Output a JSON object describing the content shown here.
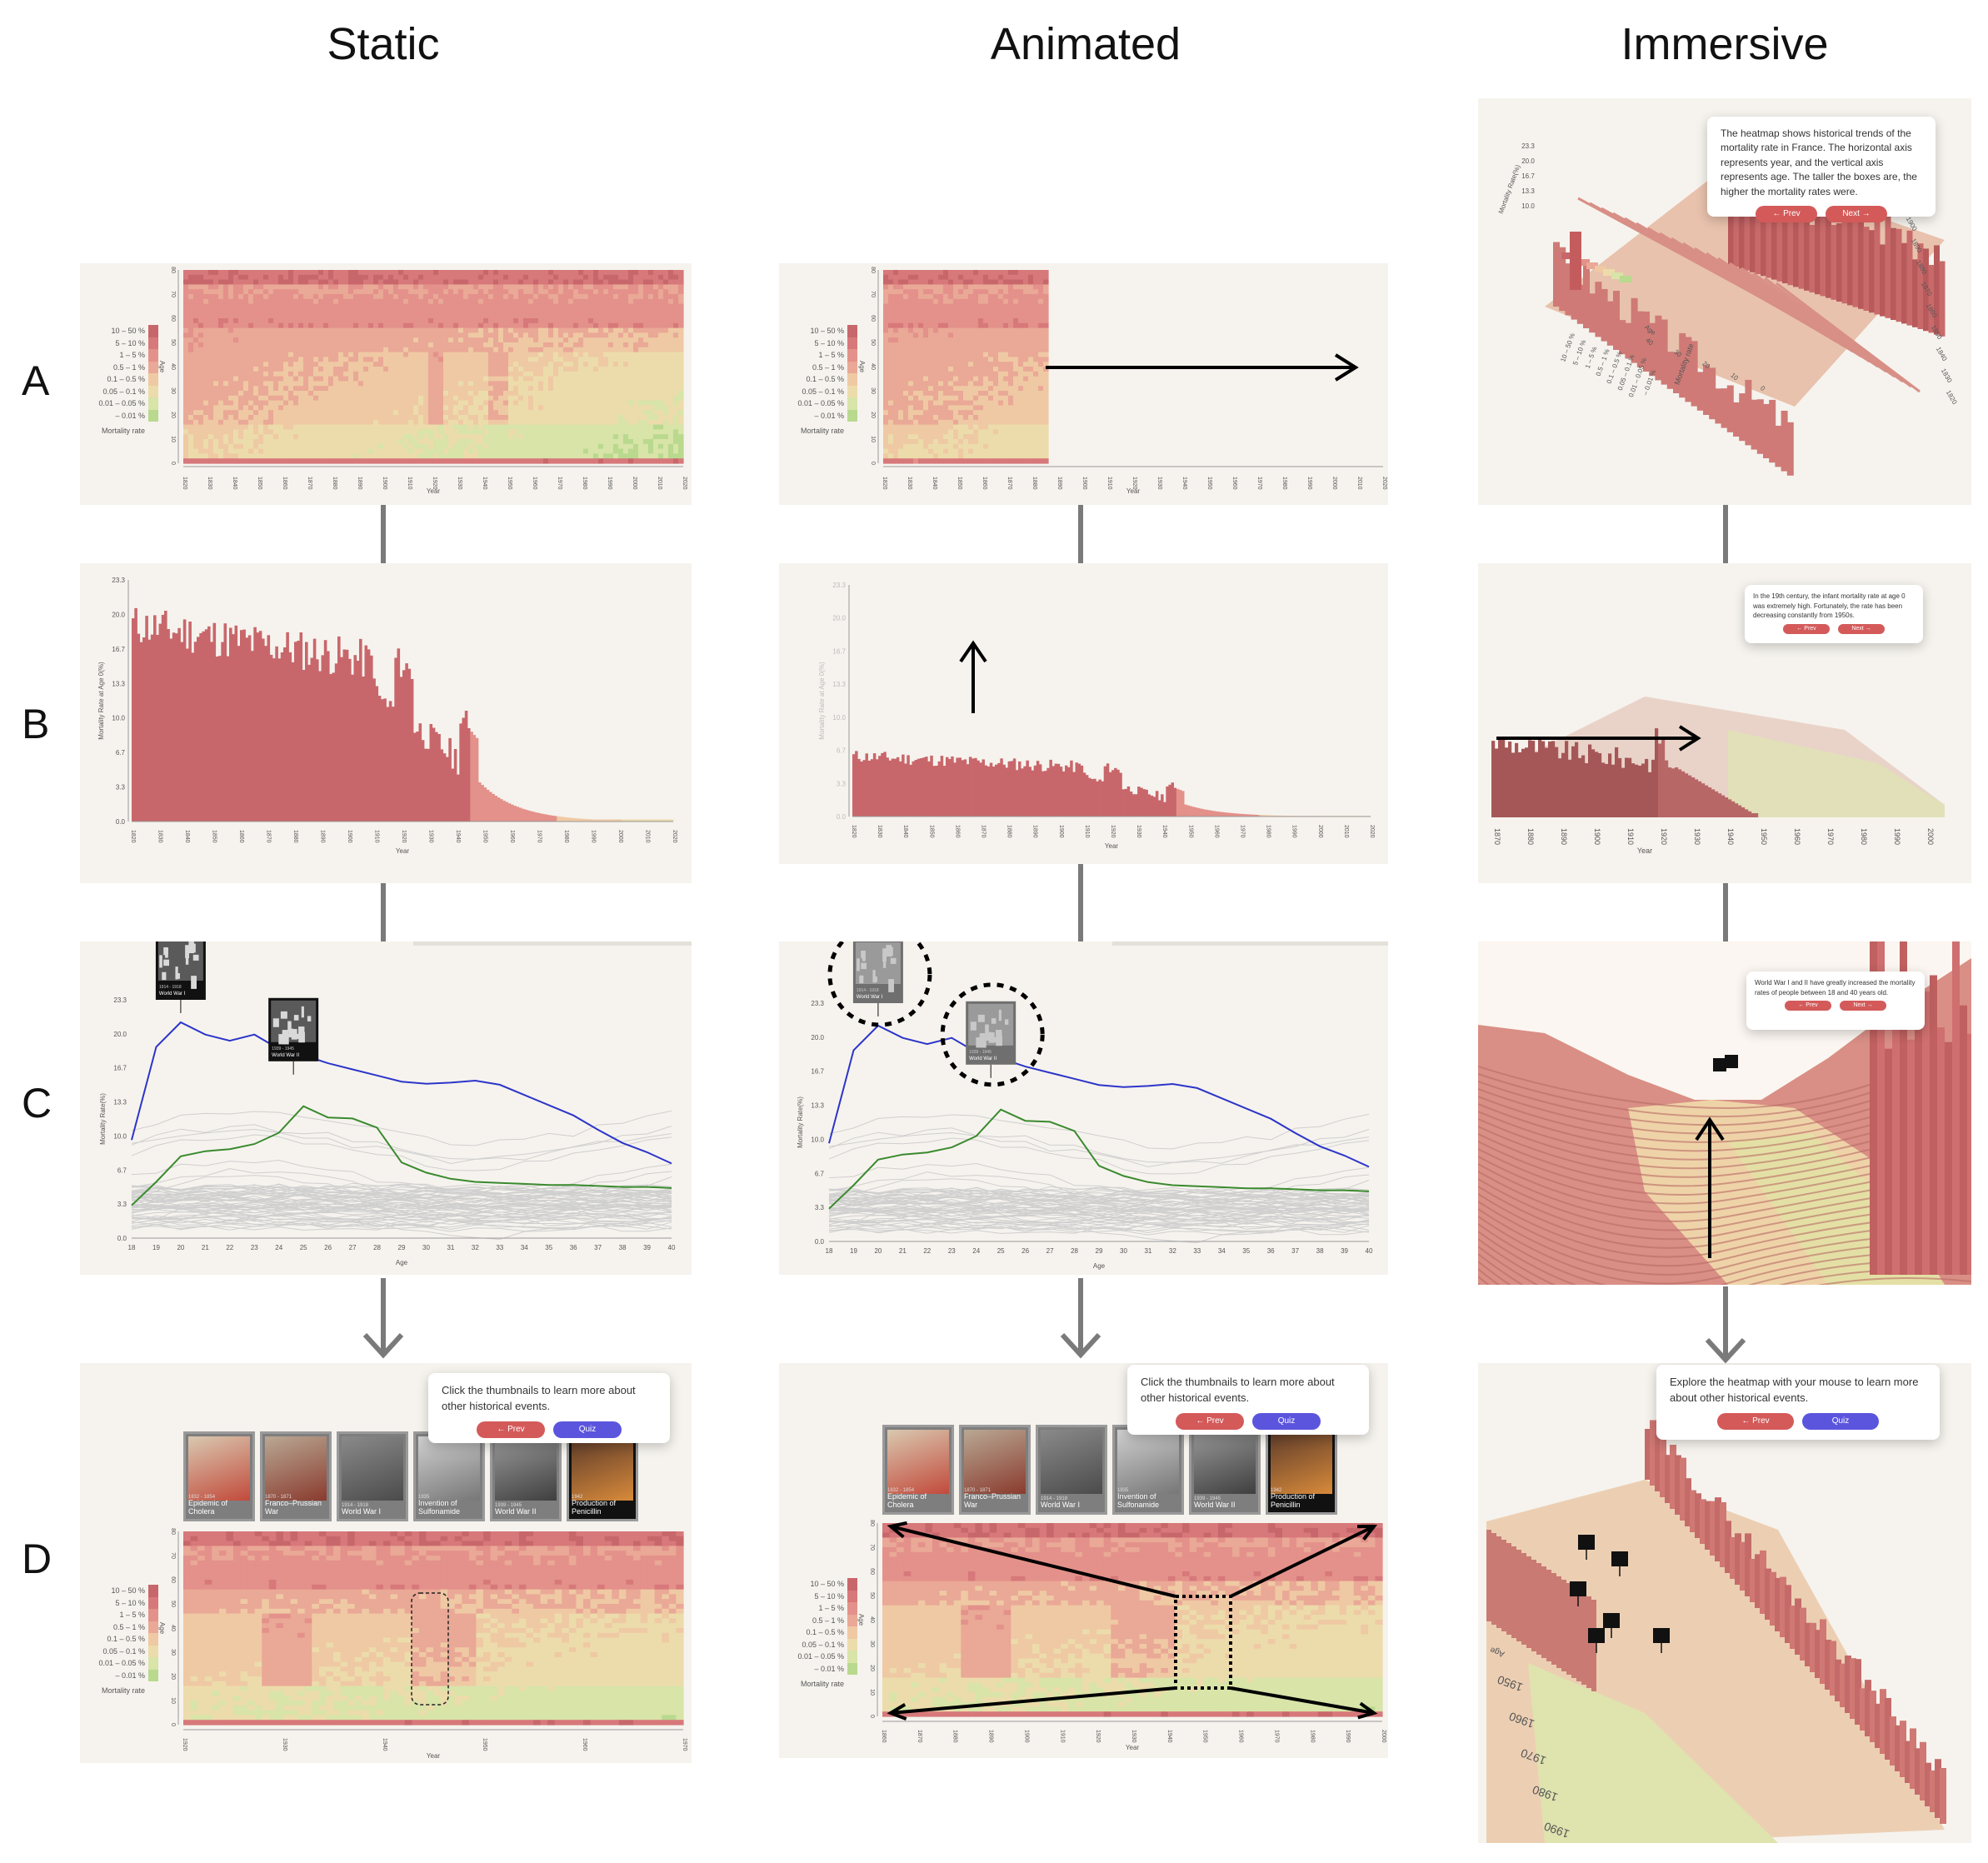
{
  "columns": [
    "Static",
    "Animated",
    "Immersive"
  ],
  "rows": [
    "A",
    "B",
    "C",
    "D"
  ],
  "legend": {
    "items": [
      "10 – 50 %",
      "5 – 10 %",
      "1 – 5 %",
      "0.5 – 1 %",
      "0.1 – 0.5 %",
      "0.05 – 0.1 %",
      "0.01 – 0.05 %",
      "– 0.01 %"
    ],
    "title": "Mortality rate",
    "colors": [
      "#c8676b",
      "#d7787a",
      "#e3918a",
      "#eaa896",
      "#efc9a4",
      "#ecdcab",
      "#d8e4a8",
      "#b9d98e"
    ]
  },
  "axes": {
    "year_label": "Year",
    "age_label": "Age",
    "rate_age0_label": "Mortality Rate at Age 0(%)",
    "rate_label": "Mortality Rate(%)",
    "immersive_rate_label": "Mortality Rate(%)",
    "heat_years_a": [
      "1820",
      "1830",
      "1840",
      "1850",
      "1860",
      "1870",
      "1880",
      "1890",
      "1900",
      "1910",
      "1920",
      "1930",
      "1940",
      "1950",
      "1960",
      "1970",
      "1980",
      "1990",
      "2000",
      "2010",
      "2020"
    ],
    "heat_years_d": [
      "1920",
      "1930",
      "1940",
      "1950",
      "1960",
      "1970"
    ],
    "heat_years_d_anim": [
      "1860",
      "1870",
      "1880",
      "1890",
      "1900",
      "1910",
      "1920",
      "1930",
      "1940",
      "1950",
      "1960",
      "1970",
      "1980",
      "1990",
      "2000"
    ],
    "ages": [
      "0",
      "10",
      "20",
      "30",
      "40",
      "50",
      "60",
      "70",
      "80"
    ],
    "rate_ticks": [
      "0.0",
      "3.3",
      "6.7",
      "10.0",
      "13.3",
      "16.7",
      "20.0",
      "23.3"
    ],
    "age_ticks_c": [
      "18",
      "19",
      "20",
      "21",
      "22",
      "23",
      "24",
      "25",
      "26",
      "27",
      "28",
      "29",
      "30",
      "31",
      "32",
      "33",
      "34",
      "35",
      "36",
      "37",
      "38",
      "39",
      "40"
    ],
    "immersive_years_a": [
      "1820",
      "1830",
      "1840",
      "1850",
      "1860",
      "1870",
      "1880",
      "1890",
      "1900",
      "1910"
    ],
    "immersive_ages_a": [
      "0",
      "10",
      "20",
      "30",
      "40"
    ],
    "immersive_rates_a": [
      "23.3",
      "20.0",
      "16.7",
      "13.3",
      "10.0"
    ],
    "immersive_years_b": [
      "1870",
      "1880",
      "1890",
      "1900",
      "1910",
      "1920",
      "1930",
      "1940",
      "1950",
      "1960",
      "1970",
      "1980",
      "1990",
      "2000"
    ],
    "immersive_years_d": [
      "1950",
      "1960",
      "1970",
      "1980",
      "1990"
    ],
    "immersive_age_d": "Age"
  },
  "tooltips": {
    "a_imm": "The heatmap shows historical trends of the mortality rate in France. The horizontal axis represents year, and the vertical axis represents age. The taller the boxes are, the higher the mortality rates were.",
    "b_imm": "In the 19th century, the infant mortality rate at age 0 was extremely high. Fortunately, the rate has been decreasing constantly from 1950s.",
    "c_imm": "World War I and II have greatly increased the mortality rates of people between 18 and 40 years old.",
    "d_static": "Click the thumbnails to learn more about other historical events.",
    "d_anim": "Click the thumbnails to learn more about other historical events.",
    "d_imm": "Explore the heatmap with your mouse to learn more about other historical events.",
    "prev": "← Prev",
    "next": "Next →",
    "quiz": "Quiz"
  },
  "events": {
    "ww1_years": "1914 - 1918",
    "ww1": "World War I",
    "ww2_years": "1939 - 1945",
    "ww2": "World War II"
  },
  "thumbnails": [
    {
      "years": "1832 - 1854",
      "name": "Epidemic of Cholera"
    },
    {
      "years": "1870 - 1871",
      "name": "Franco–Prussian War"
    },
    {
      "years": "1914 - 1918",
      "name": "World War I"
    },
    {
      "years": "1935",
      "name": "Invention of Sulfonamide"
    },
    {
      "years": "1939 - 1945",
      "name": "World War II"
    },
    {
      "years": "1942",
      "name": "Production of Penicillin"
    }
  ]
}
